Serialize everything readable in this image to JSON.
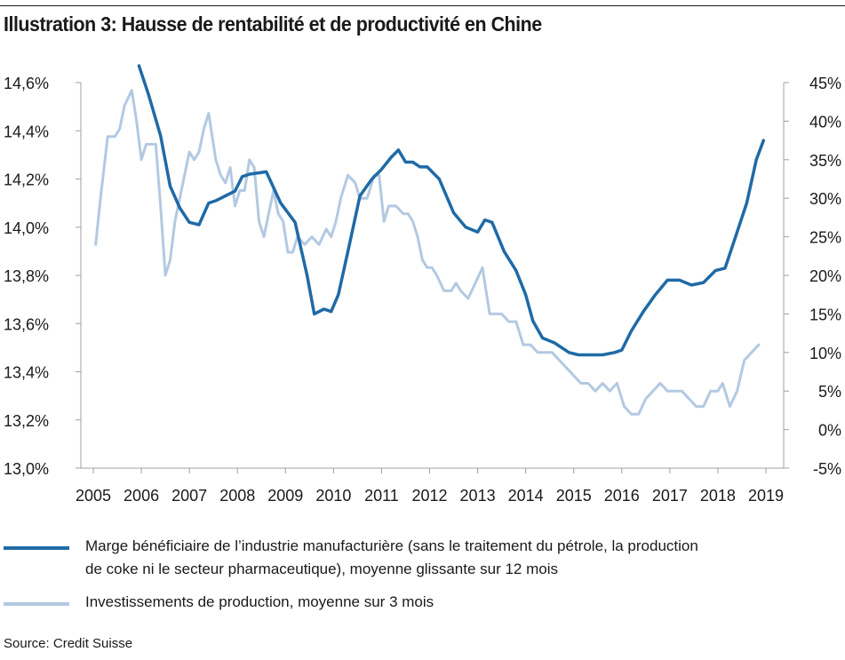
{
  "title": "Illustration 3: Hausse de rentabilité et de productivité en Chine",
  "source": "Source: Credit Suisse",
  "colors": {
    "margin_series": "#1f6aa6",
    "investment_series": "#b3c9e2",
    "axis": "#a0a0a0"
  },
  "legend": [
    {
      "label_line1": "Marge bénéficiaire de l’industrie manufacturière (sans le traitement du pétrole, la production",
      "label_line2": "de coke ni le secteur pharmaceutique), moyenne glissante sur 12 mois"
    },
    {
      "label_line1": "Investissements de production, moyenne sur 3 mois",
      "label_line2": ""
    }
  ],
  "chart_data": {
    "type": "line",
    "title": "Illustration 3: Hausse de rentabilité et de productivité en Chine",
    "x_range": [
      2005,
      2019
    ],
    "x_ticks": [
      "2005",
      "2006",
      "2007",
      "2008",
      "2009",
      "2010",
      "2011",
      "2012",
      "2013",
      "2014",
      "2015",
      "2016",
      "2017",
      "2018",
      "2019"
    ],
    "y_left": {
      "range": [
        13.0,
        14.6
      ],
      "ticks": [
        "13,0%",
        "13,2%",
        "13,4%",
        "13,6%",
        "13,8%",
        "14,0%",
        "14,2%",
        "14,4%",
        "14,6%"
      ]
    },
    "y_right": {
      "range": [
        -5,
        45
      ],
      "ticks": [
        "-5%",
        "0%",
        "5%",
        "10%",
        "15%",
        "20%",
        "25%",
        "30%",
        "35%",
        "40%",
        "45%"
      ]
    },
    "grid": false,
    "series": [
      {
        "name": "Marge bénéficiaire de l’industrie manufacturière (sans le traitement du pétrole, la production de coke ni le secteur pharmaceutique), moyenne glissante sur 12 mois",
        "axis": "left",
        "x": [
          2005.95,
          2006.15,
          2006.4,
          2006.6,
          2006.8,
          2007.0,
          2007.2,
          2007.4,
          2007.55,
          2007.75,
          2007.95,
          2008.1,
          2008.25,
          2008.6,
          2008.9,
          2009.2,
          2009.45,
          2009.6,
          2009.8,
          2009.95,
          2010.1,
          2010.3,
          2010.55,
          2010.8,
          2011.0,
          2011.2,
          2011.35,
          2011.5,
          2011.65,
          2011.8,
          2011.95,
          2012.2,
          2012.5,
          2012.75,
          2013.0,
          2013.15,
          2013.3,
          2013.55,
          2013.8,
          2014.0,
          2014.15,
          2014.35,
          2014.6,
          2014.9,
          2015.1,
          2015.3,
          2015.6,
          2015.85,
          2016.0,
          2016.2,
          2016.45,
          2016.7,
          2016.95,
          2017.2,
          2017.45,
          2017.7,
          2017.95,
          2018.15,
          2018.35,
          2018.6,
          2018.8,
          2018.95
        ],
        "y": [
          14.7,
          14.55,
          14.38,
          14.17,
          14.08,
          14.02,
          14.01,
          14.1,
          14.11,
          14.13,
          14.15,
          14.21,
          14.22,
          14.23,
          14.1,
          14.02,
          13.8,
          13.64,
          13.66,
          13.65,
          13.72,
          13.9,
          14.13,
          14.2,
          14.24,
          14.29,
          14.32,
          14.27,
          14.27,
          14.25,
          14.25,
          14.2,
          14.06,
          14.0,
          13.98,
          14.03,
          14.02,
          13.9,
          13.82,
          13.72,
          13.61,
          13.54,
          13.52,
          13.48,
          13.47,
          13.47,
          13.47,
          13.48,
          13.49,
          13.57,
          13.65,
          13.72,
          13.78,
          13.78,
          13.76,
          13.77,
          13.82,
          13.83,
          13.95,
          14.1,
          14.28,
          14.36
        ]
      },
      {
        "name": "Investissements de production, moyenne sur 3 mois",
        "axis": "right",
        "x": [
          2005.05,
          2005.15,
          2005.3,
          2005.45,
          2005.55,
          2005.65,
          2005.8,
          2005.9,
          2006.0,
          2006.1,
          2006.2,
          2006.3,
          2006.4,
          2006.5,
          2006.6,
          2006.7,
          2006.8,
          2006.9,
          2007.0,
          2007.1,
          2007.2,
          2007.3,
          2007.4,
          2007.55,
          2007.65,
          2007.75,
          2007.85,
          2007.95,
          2008.05,
          2008.15,
          2008.25,
          2008.35,
          2008.45,
          2008.55,
          2008.65,
          2008.75,
          2008.85,
          2008.95,
          2009.05,
          2009.15,
          2009.25,
          2009.4,
          2009.55,
          2009.7,
          2009.85,
          2009.95,
          2010.05,
          2010.15,
          2010.3,
          2010.45,
          2010.55,
          2010.7,
          2010.85,
          2010.95,
          2011.05,
          2011.15,
          2011.3,
          2011.45,
          2011.55,
          2011.65,
          2011.75,
          2011.85,
          2011.95,
          2012.05,
          2012.15,
          2012.3,
          2012.45,
          2012.55,
          2012.65,
          2012.8,
          2012.95,
          2013.1,
          2013.25,
          2013.35,
          2013.5,
          2013.65,
          2013.8,
          2013.95,
          2014.1,
          2014.25,
          2014.4,
          2014.55,
          2014.7,
          2014.85,
          2015.0,
          2015.15,
          2015.3,
          2015.45,
          2015.6,
          2015.75,
          2015.9,
          2016.05,
          2016.2,
          2016.35,
          2016.5,
          2016.65,
          2016.8,
          2016.95,
          2017.1,
          2017.25,
          2017.4,
          2017.55,
          2017.7,
          2017.85,
          2018.0,
          2018.1,
          2018.25,
          2018.4,
          2018.55,
          2018.7,
          2018.85
        ],
        "y": [
          24,
          30,
          38,
          38,
          39,
          42,
          44,
          40,
          35,
          37,
          37,
          37,
          29,
          20,
          22,
          27,
          30,
          33,
          36,
          35,
          36,
          39,
          41,
          35,
          33,
          32,
          34,
          29,
          31,
          31,
          35,
          34,
          27,
          25,
          28,
          31,
          28,
          27,
          23,
          23,
          25,
          24,
          25,
          24,
          26,
          25,
          27,
          30,
          33,
          32,
          30,
          30,
          33,
          33,
          27,
          29,
          29,
          28,
          28,
          27,
          25,
          22,
          21,
          21,
          20,
          18,
          18,
          19,
          18,
          17,
          19,
          21,
          15,
          15,
          15,
          14,
          14,
          11,
          11,
          10,
          10,
          10,
          9,
          8,
          7,
          6,
          6,
          5,
          6,
          5,
          6,
          3,
          2,
          2,
          4,
          5,
          6,
          5,
          5,
          5,
          4,
          3,
          3,
          5,
          5,
          6,
          3,
          5,
          9,
          10,
          11
        ]
      }
    ]
  }
}
